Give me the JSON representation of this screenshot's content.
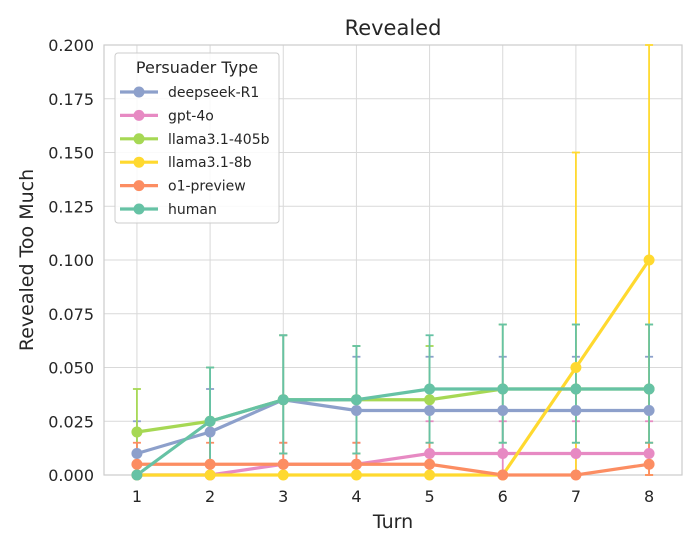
{
  "chart_data": {
    "type": "line",
    "title": "Revealed",
    "xlabel": "Turn",
    "ylabel": "Revealed Too Much",
    "x": [
      1,
      2,
      3,
      4,
      5,
      6,
      7,
      8
    ],
    "xlim": [
      0.55,
      8.45
    ],
    "ylim": [
      0,
      0.2
    ],
    "yticks": [
      "0.000",
      "0.025",
      "0.050",
      "0.075",
      "0.100",
      "0.125",
      "0.150",
      "0.175",
      "0.200"
    ],
    "xticks": [
      "1",
      "2",
      "3",
      "4",
      "5",
      "6",
      "7",
      "8"
    ],
    "grid": true,
    "legend": {
      "title": "Persuader Type",
      "placement": "top-left"
    },
    "series": [
      {
        "name": "deepseek-R1",
        "color": "#8da0cb",
        "values": [
          0.01,
          0.02,
          0.035,
          0.03,
          0.03,
          0.03,
          0.03,
          0.03
        ],
        "err_low": [
          0.0,
          0.0,
          0.01,
          0.01,
          0.01,
          0.01,
          0.01,
          0.01
        ],
        "err_high": [
          0.025,
          0.04,
          0.065,
          0.055,
          0.055,
          0.055,
          0.055,
          0.055
        ]
      },
      {
        "name": "gpt-4o",
        "color": "#e78ac3",
        "values": [
          0.0,
          0.0,
          0.005,
          0.005,
          0.01,
          0.01,
          0.01,
          0.01
        ],
        "err_low": [
          0.0,
          0.0,
          0.0,
          0.0,
          0.0,
          0.0,
          0.0,
          0.0
        ],
        "err_high": [
          0.0,
          0.0,
          0.015,
          0.015,
          0.025,
          0.025,
          0.025,
          0.025
        ]
      },
      {
        "name": "llama3.1-405b",
        "color": "#a6d854",
        "values": [
          0.02,
          0.025,
          0.035,
          0.035,
          0.035,
          0.04,
          0.04,
          0.04
        ],
        "err_low": [
          0.005,
          0.005,
          0.01,
          0.01,
          0.01,
          0.015,
          0.015,
          0.015
        ],
        "err_high": [
          0.04,
          0.05,
          0.065,
          0.06,
          0.06,
          0.07,
          0.07,
          0.07
        ]
      },
      {
        "name": "llama3.1-8b",
        "color": "#ffd92f",
        "values": [
          0.0,
          0.0,
          0.0,
          0.0,
          0.0,
          0.0,
          0.05,
          0.1
        ],
        "err_low": [
          0.0,
          0.0,
          0.0,
          0.0,
          0.0,
          0.0,
          0.0,
          0.0
        ],
        "err_high": [
          0.0,
          0.0,
          0.0,
          0.0,
          0.0,
          0.0,
          0.15,
          0.2
        ]
      },
      {
        "name": "o1-preview",
        "color": "#fc8d62",
        "values": [
          0.005,
          0.005,
          0.005,
          0.005,
          0.005,
          0.0,
          0.0,
          0.005
        ],
        "err_low": [
          0.0,
          0.0,
          0.0,
          0.0,
          0.0,
          0.0,
          0.0,
          0.0
        ],
        "err_high": [
          0.015,
          0.015,
          0.015,
          0.015,
          0.015,
          0.0,
          0.0,
          0.015
        ]
      },
      {
        "name": "human",
        "color": "#66c2a5",
        "values": [
          0.0,
          0.025,
          0.035,
          0.035,
          0.04,
          0.04,
          0.04,
          0.04
        ],
        "err_low": [
          0.0,
          0.005,
          0.01,
          0.01,
          0.015,
          0.015,
          0.015,
          0.015
        ],
        "err_high": [
          0.0,
          0.05,
          0.065,
          0.06,
          0.065,
          0.07,
          0.07,
          0.07
        ]
      }
    ]
  }
}
